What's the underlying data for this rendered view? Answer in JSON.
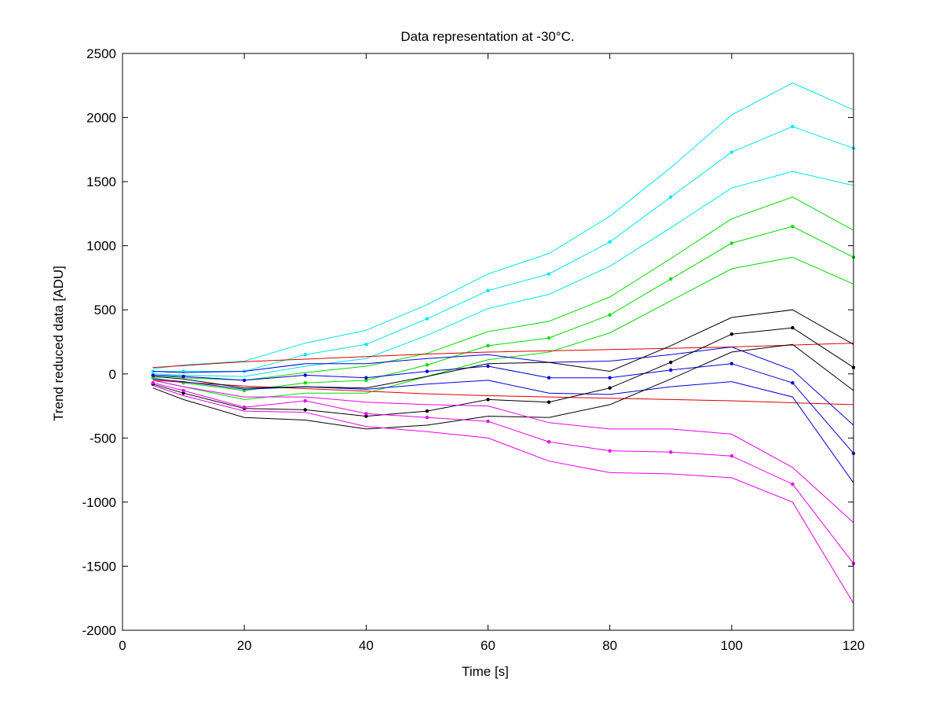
{
  "chart_data": {
    "type": "line",
    "title": "Data representation at -30°C.",
    "xlabel": "Time [s]",
    "ylabel": "Trend reduced data [ADU]",
    "xlim": [
      0,
      120
    ],
    "ylim": [
      -2000,
      2500
    ],
    "xticks": [
      0,
      20,
      40,
      60,
      80,
      100,
      120
    ],
    "yticks": [
      -2000,
      -1500,
      -1000,
      -500,
      0,
      500,
      1000,
      1500,
      2000,
      2500
    ],
    "grid": false,
    "legend": "none",
    "x": [
      5,
      10,
      20,
      30,
      40,
      50,
      60,
      70,
      80,
      90,
      100,
      110,
      120
    ],
    "series": [
      {
        "color": "#00e5ee",
        "markers": false,
        "values": [
          40,
          70,
          100,
          240,
          340,
          540,
          780,
          940,
          1230,
          1610,
          2020,
          2270,
          2060
        ]
      },
      {
        "color": "#00e5ee",
        "markers": true,
        "values": [
          20,
          20,
          20,
          150,
          230,
          430,
          650,
          780,
          1030,
          1380,
          1730,
          1930,
          1760
        ]
      },
      {
        "color": "#00e5ee",
        "markers": false,
        "values": [
          0,
          -10,
          -20,
          60,
          120,
          300,
          510,
          620,
          840,
          1140,
          1450,
          1580,
          1470
        ]
      },
      {
        "color": "#00dd00",
        "markers": false,
        "values": [
          -10,
          -30,
          -50,
          10,
          60,
          160,
          330,
          410,
          600,
          900,
          1210,
          1380,
          1120
        ]
      },
      {
        "color": "#00dd00",
        "markers": true,
        "values": [
          -30,
          -70,
          -130,
          -70,
          -50,
          70,
          220,
          280,
          460,
          740,
          1020,
          1150,
          910
        ]
      },
      {
        "color": "#00dd00",
        "markers": false,
        "values": [
          -50,
          -100,
          -200,
          -150,
          -150,
          -20,
          110,
          170,
          320,
          570,
          820,
          910,
          700
        ]
      },
      {
        "color": "#dd0000",
        "markers": false,
        "values": [
          50,
          65,
          95,
          115,
          135,
          155,
          170,
          180,
          190,
          200,
          210,
          225,
          240
        ]
      },
      {
        "color": "#dd0000",
        "markers": false,
        "values": [
          -50,
          -65,
          -95,
          -115,
          -135,
          -155,
          -170,
          -180,
          -190,
          -200,
          -210,
          -225,
          -240
        ]
      },
      {
        "color": "#0000dd",
        "markers": false,
        "values": [
          20,
          10,
          20,
          80,
          80,
          120,
          150,
          90,
          100,
          150,
          210,
          30,
          -400
        ]
      },
      {
        "color": "#0000dd",
        "markers": true,
        "values": [
          -10,
          -20,
          -50,
          -10,
          -30,
          20,
          60,
          -30,
          -30,
          30,
          80,
          -70,
          -620
        ]
      },
      {
        "color": "#0000dd",
        "markers": false,
        "values": [
          -40,
          -60,
          -120,
          -100,
          -120,
          -80,
          -50,
          -150,
          -160,
          -100,
          -60,
          -180,
          -850
        ]
      },
      {
        "color": "#000000",
        "markers": false,
        "values": [
          -20,
          -40,
          -110,
          -100,
          -110,
          -20,
          80,
          90,
          20,
          220,
          440,
          500,
          230
        ]
      },
      {
        "color": "#000000",
        "markers": true,
        "values": [
          -80,
          -150,
          -270,
          -280,
          -330,
          -290,
          -200,
          -220,
          -110,
          90,
          310,
          360,
          50
        ]
      },
      {
        "color": "#000000",
        "markers": false,
        "values": [
          -110,
          -200,
          -340,
          -360,
          -430,
          -400,
          -330,
          -340,
          -240,
          -40,
          170,
          230,
          -130
        ]
      },
      {
        "color": "#ee00ee",
        "markers": false,
        "values": [
          -50,
          -100,
          -180,
          -180,
          -220,
          -240,
          -250,
          -380,
          -430,
          -430,
          -470,
          -730,
          -1160
        ]
      },
      {
        "color": "#ee00ee",
        "markers": true,
        "values": [
          -70,
          -130,
          -260,
          -210,
          -310,
          -340,
          -370,
          -530,
          -600,
          -610,
          -640,
          -860,
          -1480
        ]
      },
      {
        "color": "#ee00ee",
        "markers": false,
        "values": [
          -90,
          -170,
          -290,
          -300,
          -410,
          -450,
          -500,
          -680,
          -770,
          -780,
          -810,
          -1000,
          -1790
        ]
      }
    ]
  }
}
